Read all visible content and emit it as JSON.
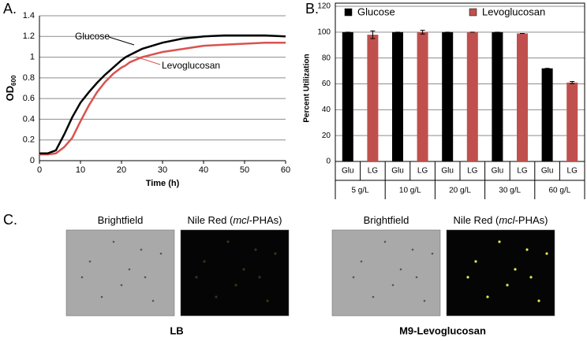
{
  "chart_data": [
    {
      "type": "line",
      "title": "A.",
      "x_label": "Time (h)",
      "y_label": "OD",
      "y_label_subscript": "600",
      "x": [
        0,
        2,
        4,
        6,
        8,
        10,
        12,
        14,
        16,
        18,
        20,
        21,
        22,
        25,
        30,
        35,
        40,
        45,
        50,
        55,
        60
      ],
      "series": [
        {
          "name": "Glucose",
          "color": "#000000",
          "values": [
            0.07,
            0.07,
            0.1,
            0.25,
            0.42,
            0.56,
            0.66,
            0.75,
            0.83,
            0.9,
            0.97,
            1.0,
            1.02,
            1.08,
            1.14,
            1.18,
            1.2,
            1.21,
            1.21,
            1.21,
            1.2
          ]
        },
        {
          "name": "Levoglucosan",
          "color": "#d9534f",
          "values": [
            0.06,
            0.06,
            0.07,
            0.13,
            0.22,
            0.38,
            0.53,
            0.66,
            0.76,
            0.84,
            0.9,
            0.92,
            0.95,
            1.0,
            1.05,
            1.08,
            1.11,
            1.12,
            1.13,
            1.14,
            1.14
          ]
        }
      ],
      "xlim": [
        0,
        60
      ],
      "xticks": [
        0,
        10,
        20,
        30,
        40,
        50,
        60
      ],
      "ylim": [
        0,
        1.4
      ],
      "yticks": [
        0,
        0.2,
        0.4,
        0.6,
        0.8,
        1,
        1.2,
        1.4
      ],
      "grid": true
    },
    {
      "type": "bar",
      "title": "B.",
      "y_label": "Percent Utilization",
      "categories": [
        "5 g/L",
        "10 g/L",
        "20 g/L",
        "30 g/L",
        "60 g/L"
      ],
      "series": [
        {
          "name": "Glucose",
          "short_name": "Glu",
          "color": "#000000",
          "values": [
            100,
            100,
            100,
            100,
            72
          ],
          "errors": [
            0,
            0,
            0,
            0,
            0
          ]
        },
        {
          "name": "Levoglucosan",
          "short_name": "LG",
          "color": "#c0504d",
          "values": [
            98,
            100,
            100,
            99,
            61
          ],
          "errors": [
            3,
            1.5,
            0,
            0,
            0.8
          ]
        }
      ],
      "ylim": [
        0,
        120
      ],
      "yticks": [
        0,
        20,
        40,
        60,
        80,
        100,
        120
      ],
      "grid": true,
      "legend": "top"
    }
  ],
  "panel_c": {
    "label": "C.",
    "groups": [
      {
        "caption": "LB",
        "images": [
          {
            "title": [
              "Brightfield"
            ],
            "kind": "brightfield"
          },
          {
            "title": [
              "Nile Red (",
              "mcl",
              "-PHAs)"
            ],
            "kind": "fluorescence-faint"
          }
        ]
      },
      {
        "caption": "M9-Levoglucosan",
        "images": [
          {
            "title": [
              "Brightfield"
            ],
            "kind": "brightfield"
          },
          {
            "title": [
              "Nile Red (",
              "mcl",
              "-PHAs)"
            ],
            "kind": "fluorescence"
          }
        ]
      }
    ]
  }
}
